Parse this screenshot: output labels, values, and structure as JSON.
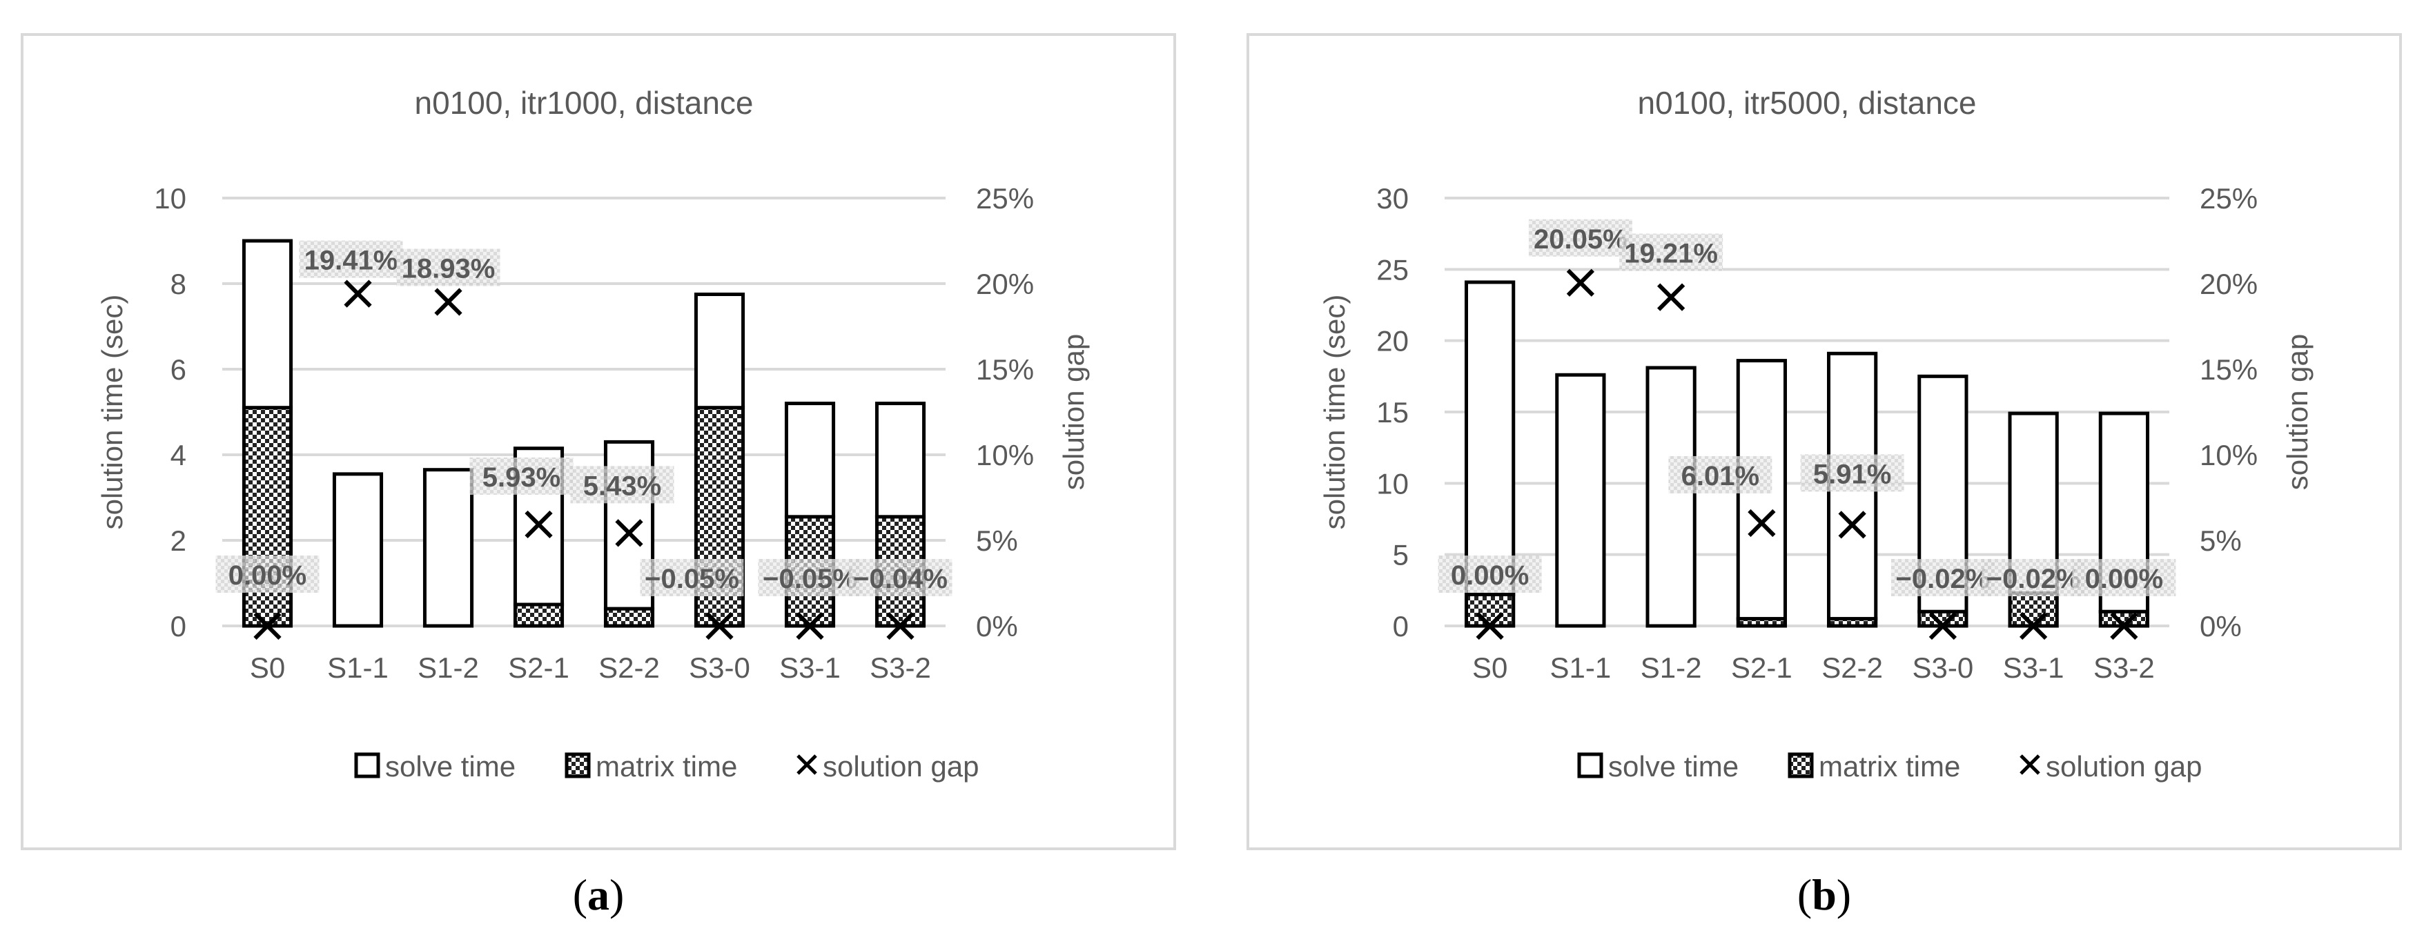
{
  "chart_data": [
    {
      "type": "bar",
      "stacked": true,
      "panel_label": "(a)",
      "title": "n0100, itr1000, distance",
      "xlabel": "",
      "ylabel": "solution time (sec)",
      "y2label": "solution gap",
      "ylim": [
        0,
        10
      ],
      "yticks": [
        "0",
        "2",
        "4",
        "6",
        "8",
        "10"
      ],
      "y2lim": [
        0,
        25
      ],
      "y2ticks": [
        "0%",
        "5%",
        "10%",
        "15%",
        "20%",
        "25%"
      ],
      "categories": [
        "S0",
        "S1-1",
        "S1-2",
        "S2-1",
        "S2-2",
        "S3-0",
        "S3-1",
        "S3-2"
      ],
      "series": [
        {
          "name": "matrix time",
          "kind": "bar",
          "values": [
            5.1,
            0.0,
            0.0,
            0.5,
            0.4,
            5.1,
            2.55,
            2.55
          ]
        },
        {
          "name": "solve time",
          "kind": "bar",
          "values": [
            3.9,
            3.55,
            3.65,
            3.65,
            3.9,
            2.65,
            2.65,
            2.65
          ]
        },
        {
          "name": "solution gap",
          "kind": "marker",
          "axis": "y2",
          "values": [
            0.0,
            19.41,
            18.93,
            5.93,
            5.43,
            -0.05,
            -0.05,
            -0.04
          ]
        }
      ],
      "data_labels": [
        "0.00%",
        "19.41%",
        "18.93%",
        "5.93%",
        "5.43%",
        "−0.05%",
        "−0.05%",
        "−0.04%"
      ],
      "legend": [
        "solve time",
        "matrix time",
        "solution gap"
      ],
      "legend_position": "bottom",
      "grid": true
    },
    {
      "type": "bar",
      "stacked": true,
      "panel_label": "(b)",
      "title": "n0100, itr5000, distance",
      "xlabel": "",
      "ylabel": "solution time (sec)",
      "y2label": "solution gap",
      "ylim": [
        0,
        30
      ],
      "yticks": [
        "0",
        "5",
        "10",
        "15",
        "20",
        "25",
        "30"
      ],
      "y2lim": [
        0,
        25
      ],
      "y2ticks": [
        "0%",
        "5%",
        "10%",
        "15%",
        "20%",
        "25%"
      ],
      "categories": [
        "S0",
        "S1-1",
        "S1-2",
        "S2-1",
        "S2-2",
        "S3-0",
        "S3-1",
        "S3-2"
      ],
      "series": [
        {
          "name": "matrix time",
          "kind": "bar",
          "values": [
            2.2,
            0.0,
            0.0,
            0.5,
            0.5,
            1.0,
            2.3,
            1.0
          ]
        },
        {
          "name": "solve time",
          "kind": "bar",
          "values": [
            21.9,
            17.6,
            18.1,
            18.1,
            18.6,
            16.5,
            12.6,
            13.9
          ]
        },
        {
          "name": "solution gap",
          "kind": "marker",
          "axis": "y2",
          "values": [
            0.0,
            20.05,
            19.21,
            6.01,
            5.91,
            -0.02,
            -0.02,
            0.0
          ]
        }
      ],
      "data_labels": [
        "0.00%",
        "20.05%",
        "19.21%",
        "6.01%",
        "5.91%",
        "−0.02%",
        "−0.02%",
        "0.00%"
      ],
      "legend": [
        "solve time",
        "matrix time",
        "solution gap"
      ],
      "legend_position": "bottom",
      "grid": true
    }
  ]
}
